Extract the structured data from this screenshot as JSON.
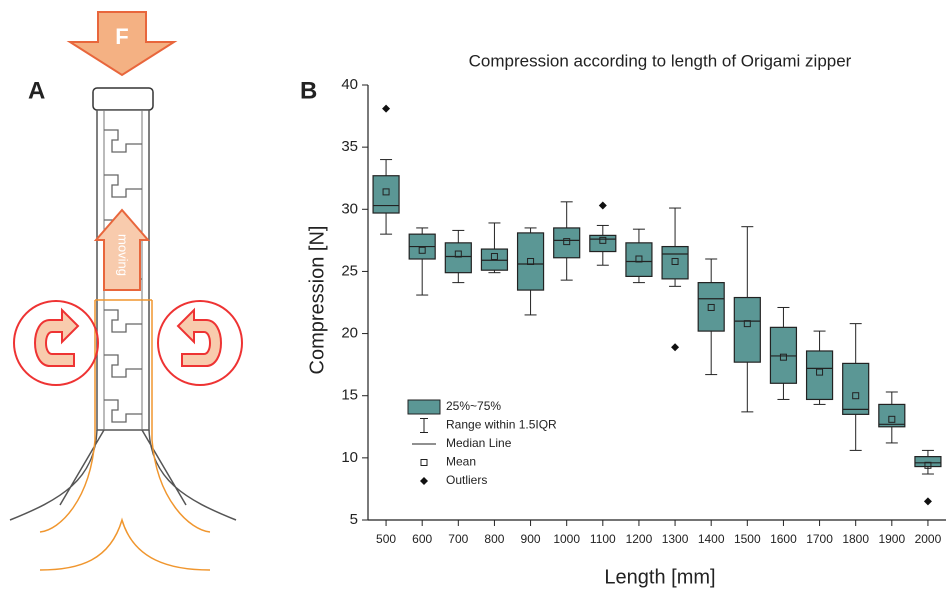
{
  "panel_labels": [
    "A",
    "B"
  ],
  "panel_a": {
    "force_label": "F",
    "arrow_label": "moving"
  },
  "chart_data": {
    "type": "box",
    "title": "Compression according to length of Origami zipper",
    "x_label": "Length [mm]",
    "y_label": "Compression [N]",
    "categories": [
      "500",
      "600",
      "700",
      "800",
      "900",
      "1000",
      "1100",
      "1200",
      "1300",
      "1400",
      "1500",
      "1600",
      "1700",
      "1800",
      "1900",
      "2000"
    ],
    "color": "#5b9795",
    "ylim": [
      5,
      40
    ],
    "yticks": [
      5,
      10,
      15,
      20,
      25,
      30,
      35,
      40
    ],
    "legend": [
      "25%~75%",
      "Range within 1.5IQR",
      "Median Line",
      "Mean",
      "Outliers"
    ],
    "boxes": [
      {
        "min": 28.0,
        "q1": 29.7,
        "median": 30.3,
        "q3": 32.7,
        "max": 34.0,
        "mean": 31.4,
        "outliers": [
          38.1
        ]
      },
      {
        "min": 23.1,
        "q1": 26.0,
        "median": 27.0,
        "q3": 28.0,
        "max": 28.5,
        "mean": 26.7,
        "outliers": []
      },
      {
        "min": 24.1,
        "q1": 24.9,
        "median": 26.2,
        "q3": 27.3,
        "max": 28.3,
        "mean": 26.4,
        "outliers": []
      },
      {
        "min": 24.9,
        "q1": 25.1,
        "median": 25.9,
        "q3": 26.8,
        "max": 28.9,
        "mean": 26.2,
        "outliers": []
      },
      {
        "min": 21.5,
        "q1": 23.5,
        "median": 25.6,
        "q3": 28.1,
        "max": 28.5,
        "mean": 25.8,
        "outliers": []
      },
      {
        "min": 24.3,
        "q1": 26.1,
        "median": 27.5,
        "q3": 28.5,
        "max": 30.6,
        "mean": 27.4,
        "outliers": []
      },
      {
        "min": 25.5,
        "q1": 26.6,
        "median": 27.6,
        "q3": 27.9,
        "max": 28.7,
        "mean": 27.5,
        "outliers": [
          30.3
        ]
      },
      {
        "min": 24.1,
        "q1": 24.6,
        "median": 25.8,
        "q3": 27.3,
        "max": 28.4,
        "mean": 26.0,
        "outliers": []
      },
      {
        "min": 23.8,
        "q1": 24.4,
        "median": 26.4,
        "q3": 27.0,
        "max": 30.1,
        "mean": 25.8,
        "outliers": [
          18.9
        ]
      },
      {
        "min": 16.7,
        "q1": 20.2,
        "median": 22.8,
        "q3": 24.1,
        "max": 26.0,
        "mean": 22.1,
        "outliers": []
      },
      {
        "min": 13.7,
        "q1": 17.7,
        "median": 21.0,
        "q3": 22.9,
        "max": 28.6,
        "mean": 20.8,
        "outliers": []
      },
      {
        "min": 14.7,
        "q1": 16.0,
        "median": 18.2,
        "q3": 20.5,
        "max": 22.1,
        "mean": 18.1,
        "outliers": []
      },
      {
        "min": 14.3,
        "q1": 14.7,
        "median": 17.2,
        "q3": 18.6,
        "max": 20.2,
        "mean": 16.9,
        "outliers": []
      },
      {
        "min": 10.6,
        "q1": 13.5,
        "median": 13.9,
        "q3": 17.6,
        "max": 20.8,
        "mean": 15.0,
        "outliers": []
      },
      {
        "min": 11.2,
        "q1": 12.5,
        "median": 12.7,
        "q3": 14.3,
        "max": 15.3,
        "mean": 13.1,
        "outliers": []
      },
      {
        "min": 8.7,
        "q1": 9.3,
        "median": 9.6,
        "q3": 10.1,
        "max": 10.6,
        "mean": 9.4,
        "outliers": [
          6.5
        ]
      }
    ]
  }
}
